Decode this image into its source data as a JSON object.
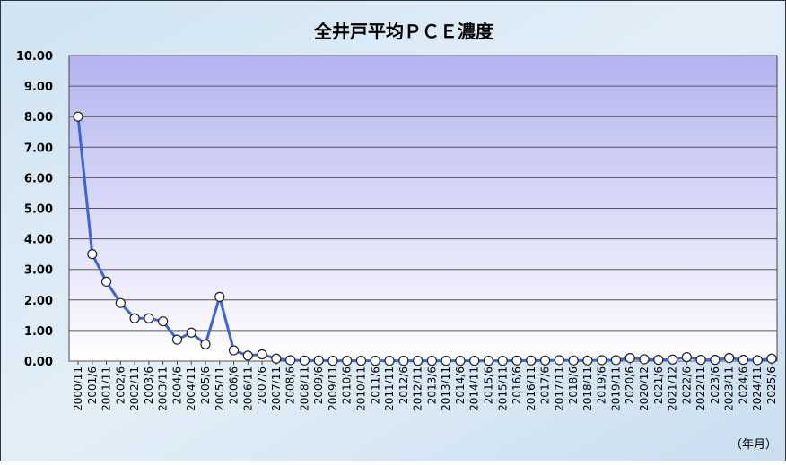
{
  "chart_data": {
    "type": "line",
    "title": "全井戸平均ＰＣＥ濃度",
    "x_axis_label": "（年月）",
    "categories": [
      "2000/11",
      "2001/6",
      "2001/11",
      "2002/6",
      "2002/11",
      "2003/6",
      "2003/11",
      "2004/6",
      "2004/11",
      "2005/6",
      "2005/11",
      "2006/6",
      "2006/11",
      "2007/6",
      "2007/11",
      "2008/6",
      "2008/11",
      "2009/6",
      "2009/11",
      "2010/6",
      "2010/11",
      "2011/6",
      "2011/11",
      "2012/6",
      "2012/11",
      "2013/6",
      "2013/11",
      "2014/6",
      "2014/11",
      "2015/6",
      "2015/11",
      "2016/6",
      "2016/11",
      "2017/6",
      "2017/11",
      "2018/6",
      "2018/11",
      "2019/6",
      "2019/11",
      "2020/6",
      "2020/12",
      "2021/6",
      "2021/12",
      "2022/6",
      "2022/11",
      "2023/6",
      "2023/11",
      "2024/6",
      "2024/11",
      "2025/6"
    ],
    "series": [
      {
        "name": "PCE",
        "color": "#3a63e0",
        "values": [
          8.0,
          3.5,
          2.6,
          1.9,
          1.4,
          1.4,
          1.3,
          0.7,
          0.93,
          0.55,
          2.1,
          0.35,
          0.18,
          0.22,
          0.08,
          0.03,
          0.02,
          0.02,
          0.01,
          0.01,
          0.01,
          0.01,
          0.01,
          0.01,
          0.01,
          0.01,
          0.01,
          0.01,
          0.01,
          0.01,
          0.01,
          0.02,
          0.02,
          0.02,
          0.03,
          0.02,
          0.02,
          0.03,
          0.03,
          0.1,
          0.06,
          0.04,
          0.05,
          0.13,
          0.04,
          0.04,
          0.1,
          0.04,
          0.03,
          0.08
        ]
      }
    ],
    "ylim": [
      0,
      10
    ],
    "yticks": [
      {
        "value": 0,
        "label": "0.00"
      },
      {
        "value": 1,
        "label": "1.00"
      },
      {
        "value": 2,
        "label": "2.00"
      },
      {
        "value": 3,
        "label": "3.00"
      },
      {
        "value": 4,
        "label": "4.00"
      },
      {
        "value": 5,
        "label": "5.00"
      },
      {
        "value": 6,
        "label": "6.00"
      },
      {
        "value": 7,
        "label": "7.00"
      },
      {
        "value": 8,
        "label": "8.00"
      },
      {
        "value": 9,
        "label": "9.00"
      },
      {
        "value": 10,
        "label": "10.00"
      }
    ],
    "grid": true
  }
}
